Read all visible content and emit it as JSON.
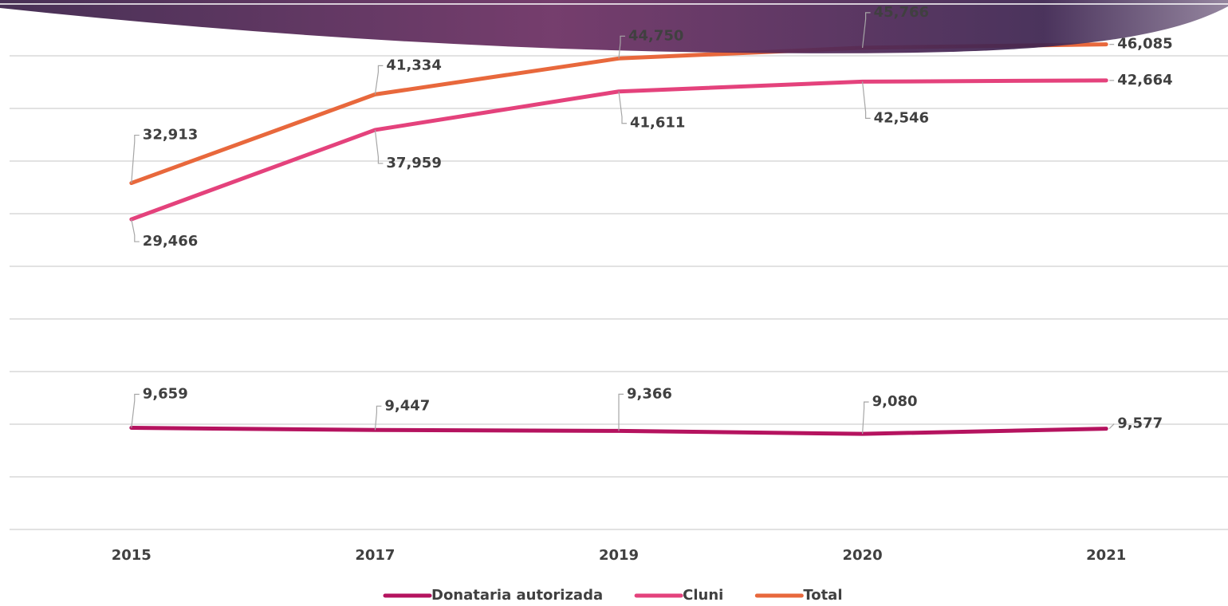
{
  "chart_data": {
    "type": "line",
    "categories": [
      "2015",
      "2017",
      "2019",
      "2020",
      "2021"
    ],
    "series": [
      {
        "name": "Donataria autorizada",
        "color": "#b5135f",
        "values": [
          9659,
          9447,
          9366,
          9080,
          9577
        ],
        "value_labels": [
          "9,659",
          "9,447",
          "9,366",
          "9,080",
          "9,577"
        ]
      },
      {
        "name": "Cluni",
        "color": "#e4427c",
        "values": [
          29466,
          37959,
          41611,
          42546,
          42664
        ],
        "value_labels": [
          "29,466",
          "37,959",
          "41,611",
          "42,546",
          "42,664"
        ]
      },
      {
        "name": "Total",
        "color": "#e8683c",
        "values": [
          32913,
          41334,
          44750,
          45766,
          46085
        ],
        "value_labels": [
          "32,913",
          "41,334",
          "44,750",
          "45,766",
          "46,085"
        ]
      }
    ],
    "ylim": [
      0,
      50000
    ],
    "yticks": [
      0,
      5000,
      10000,
      15000,
      20000,
      25000,
      30000,
      35000,
      40000,
      45000,
      50000
    ],
    "grid": true,
    "legend": "bottom"
  }
}
